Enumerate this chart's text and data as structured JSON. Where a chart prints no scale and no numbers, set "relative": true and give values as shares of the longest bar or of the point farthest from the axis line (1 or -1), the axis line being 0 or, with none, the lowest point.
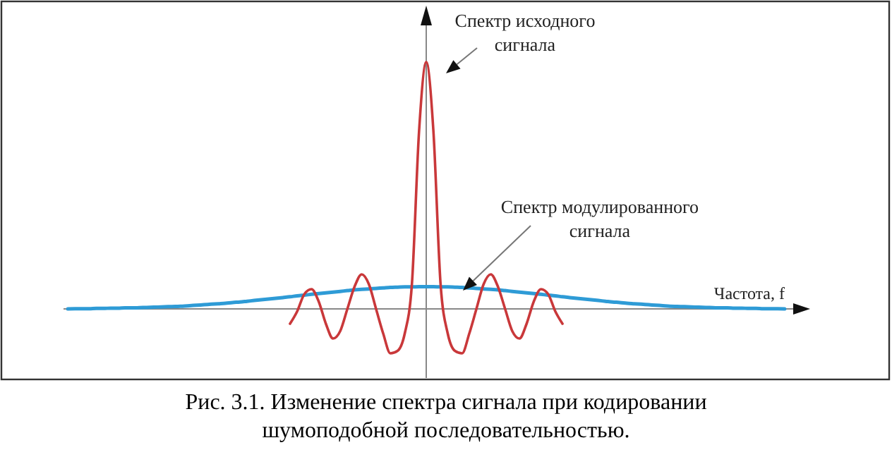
{
  "chart_data": {
    "type": "line",
    "relative": true,
    "xlabel": "Частота, f",
    "categories": [
      null,
      null,
      null,
      null,
      null,
      null,
      null,
      null,
      null,
      null,
      null,
      null,
      null,
      null,
      null,
      null,
      null,
      null,
      null,
      null,
      null,
      null,
      null,
      null,
      null,
      null,
      null,
      null,
      null,
      null,
      null,
      null,
      null,
      null,
      null,
      null,
      null,
      null,
      null,
      null,
      null,
      null,
      null,
      null,
      null,
      null,
      null,
      null,
      null,
      null,
      null,
      null,
      null,
      null,
      null,
      null,
      null,
      null,
      null,
      null,
      null,
      null,
      null,
      null,
      null,
      null,
      null,
      null,
      null,
      null,
      null,
      null,
      null,
      null,
      null,
      null,
      null,
      null,
      null,
      null,
      null,
      null,
      null,
      null,
      null,
      null,
      null,
      null,
      null,
      null,
      null,
      null,
      null,
      null,
      null,
      null,
      null,
      null,
      null,
      null,
      null
    ],
    "series": [
      {
        "color": "#2e9bd6",
        "values": [
          0.0,
          0.001,
          0.001,
          0.001,
          0.002,
          0.002,
          0.003,
          0.003,
          0.004,
          0.004,
          0.005,
          0.006,
          0.007,
          0.008,
          0.009,
          0.01,
          0.011,
          0.013,
          0.015,
          0.017,
          0.019,
          0.021,
          0.023,
          0.026,
          0.028,
          0.031,
          0.034,
          0.037,
          0.04,
          0.043,
          0.046,
          0.049,
          0.053,
          0.056,
          0.059,
          0.062,
          0.065,
          0.068,
          0.071,
          0.074,
          0.077,
          0.079,
          0.081,
          0.083,
          0.085,
          0.087,
          0.088,
          0.089,
          0.089,
          0.09,
          0.09,
          0.09,
          0.089,
          0.089,
          0.088,
          0.087,
          0.085,
          0.083,
          0.081,
          0.079,
          0.077,
          0.074,
          0.071,
          0.068,
          0.065,
          0.062,
          0.059,
          0.056,
          0.053,
          0.049,
          0.046,
          0.043,
          0.04,
          0.037,
          0.034,
          0.031,
          0.028,
          0.026,
          0.023,
          0.021,
          0.019,
          0.017,
          0.015,
          0.013,
          0.011,
          0.01,
          0.009,
          0.008,
          0.007,
          0.006,
          0.005,
          0.004,
          0.004,
          0.003,
          0.003,
          0.002,
          0.002,
          0.001,
          0.001,
          0.001,
          0.0
        ]
      },
      {
        "color": "#c9383a",
        "values": [
          null,
          null,
          null,
          null,
          null,
          null,
          null,
          null,
          null,
          null,
          null,
          null,
          null,
          null,
          null,
          null,
          null,
          null,
          null,
          null,
          null,
          null,
          null,
          null,
          null,
          null,
          null,
          null,
          null,
          null,
          null,
          -0.06,
          -0.01,
          0.06,
          0.08,
          0.03,
          -0.06,
          -0.12,
          -0.09,
          0.0,
          0.09,
          0.14,
          0.1,
          0.0,
          -0.1,
          -0.18,
          -0.17,
          -0.1,
          0.1,
          0.72,
          1,
          0.72,
          0.1,
          -0.1,
          -0.17,
          -0.18,
          -0.1,
          0.0,
          0.1,
          0.14,
          0.09,
          0.0,
          -0.09,
          -0.12,
          -0.06,
          0.03,
          0.08,
          0.06,
          -0.01,
          -0.06,
          null,
          null,
          null,
          null,
          null,
          null,
          null,
          null,
          null,
          null,
          null,
          null,
          null,
          null,
          null,
          null,
          null,
          null,
          null,
          null,
          null,
          null,
          null,
          null,
          null,
          null,
          null,
          null,
          null,
          null,
          null
        ]
      }
    ],
    "annotations": [
      "Спектр исходного сигнала",
      "Спектр модулированного сигнала",
      "Рис. 3.1. Изменение спектра сигнала при кодировании шумоподобной последовательностью."
    ]
  }
}
